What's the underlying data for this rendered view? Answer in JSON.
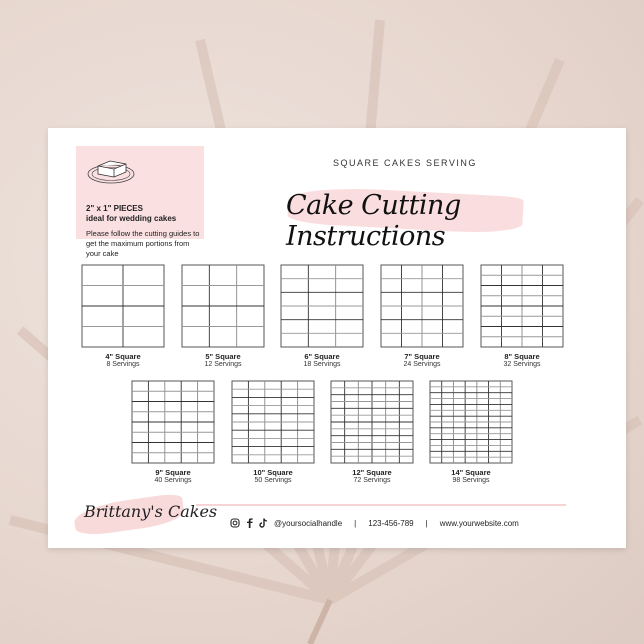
{
  "info": {
    "heading_1": "2\" x 1\" PIECES",
    "heading_2": "ideal for wedding cakes",
    "body": "Please follow the cutting guides to get the maximum portions from your cake"
  },
  "header": {
    "subtitle": "SQUARE CAKES SERVING",
    "title": "Cake Cutting Instructions"
  },
  "grids": [
    {
      "label": "4\" Square",
      "servings": "8 Servings",
      "cols": 2,
      "rows": 4
    },
    {
      "label": "5\" Square",
      "servings": "12 Servings",
      "cols": 3,
      "rows": 4
    },
    {
      "label": "6\" Square",
      "servings": "18 Servings",
      "cols": 3,
      "rows": 6
    },
    {
      "label": "7\" Square",
      "servings": "24 Servings",
      "cols": 4,
      "rows": 6
    },
    {
      "label": "8\" Square",
      "servings": "32 Servings",
      "cols": 4,
      "rows": 8
    },
    {
      "label": "9\" Square",
      "servings": "40 Servings",
      "cols": 5,
      "rows": 8
    },
    {
      "label": "10\" Square",
      "servings": "50 Servings",
      "cols": 5,
      "rows": 10
    },
    {
      "label": "12\" Square",
      "servings": "72 Servings",
      "cols": 6,
      "rows": 12
    },
    {
      "label": "14\" Square",
      "servings": "98 Servings",
      "cols": 7,
      "rows": 14
    }
  ],
  "footer": {
    "brand": "Brittany's Cakes",
    "social_icons": [
      "instagram-icon",
      "facebook-icon",
      "tiktok-icon"
    ],
    "social": "@yoursocialhandle",
    "phone": "123-456-789",
    "website": "www.yourwebsite.com",
    "separator": "|"
  },
  "colors": {
    "pink": "#fbe0e1",
    "ink": "#222222"
  }
}
